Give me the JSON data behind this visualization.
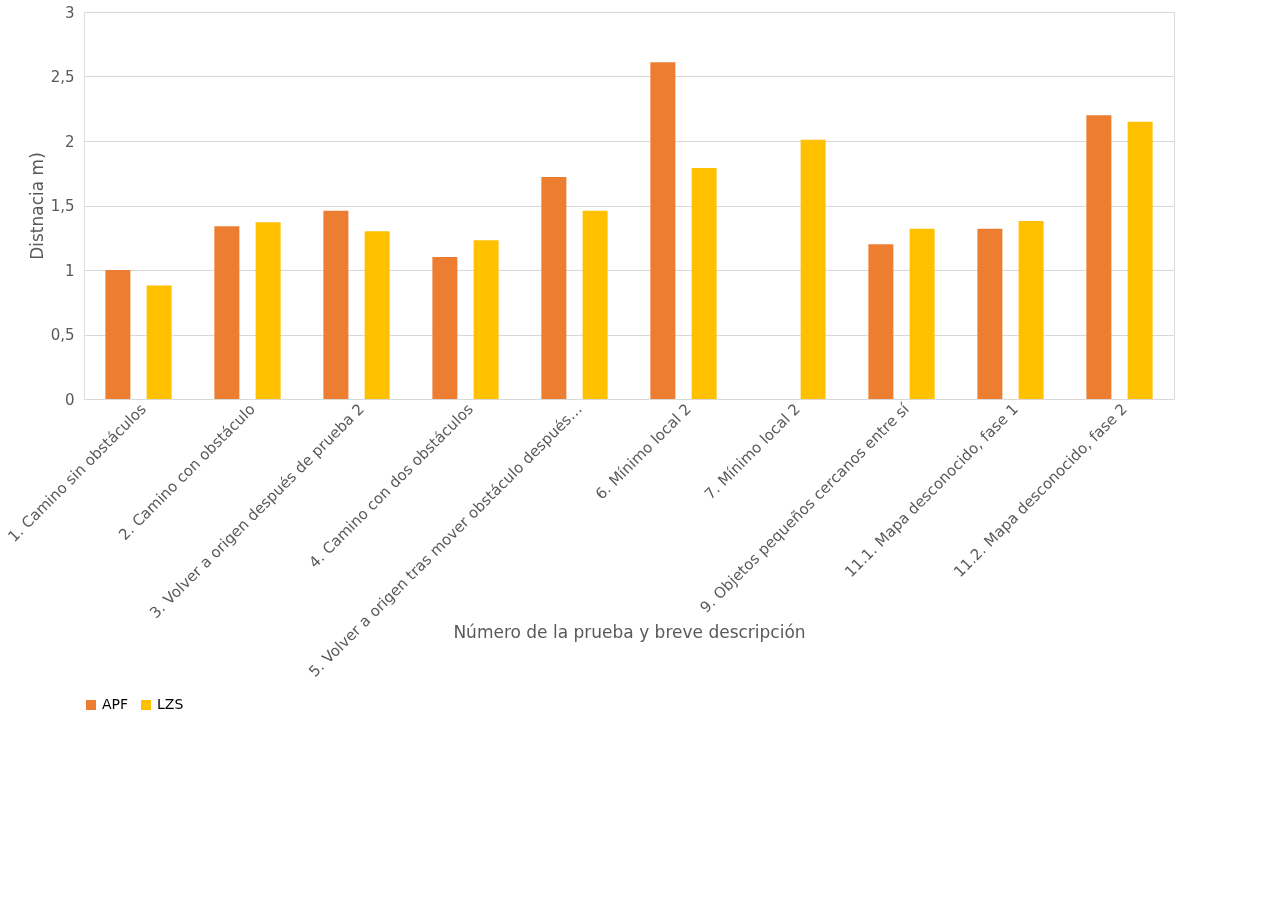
{
  "chart_data": {
    "type": "bar",
    "xlabel": "Número de la prueba y breve descripción",
    "ylabel": "Distnacia m)",
    "categories": [
      "1. Camino sin obstáculos",
      "2. Camino con obstáculo",
      "3. Volver a origen después de prueba 2",
      "4. Camino con dos obstáculos",
      "5. Volver a origen tras mover obstáculo después…",
      "6. Mínimo local 2",
      "7. Mínimo local 2",
      "9. Objetos pequeños cercanos entre sí",
      "11.1. Mapa desconocido, fase 1",
      "11.2. Mapa desconocido, fase 2"
    ],
    "series": [
      {
        "name": "APF",
        "color": "#ed7d31",
        "values": [
          1.0,
          1.34,
          1.46,
          1.1,
          1.72,
          2.61,
          null,
          1.2,
          1.32,
          2.2
        ]
      },
      {
        "name": "LZS",
        "color": "#ffc000",
        "values": [
          0.88,
          1.37,
          1.3,
          1.23,
          1.46,
          1.79,
          2.01,
          1.32,
          1.38,
          2.15
        ]
      }
    ],
    "ylim": [
      0,
      3
    ],
    "yticks": [
      0,
      {
        "value": 0.5,
        "label": "0,5"
      },
      1,
      {
        "value": 1.5,
        "label": "1,5"
      },
      2,
      {
        "value": 2.5,
        "label": "2,5"
      },
      3
    ],
    "grid": "y",
    "legend": "bottom"
  }
}
